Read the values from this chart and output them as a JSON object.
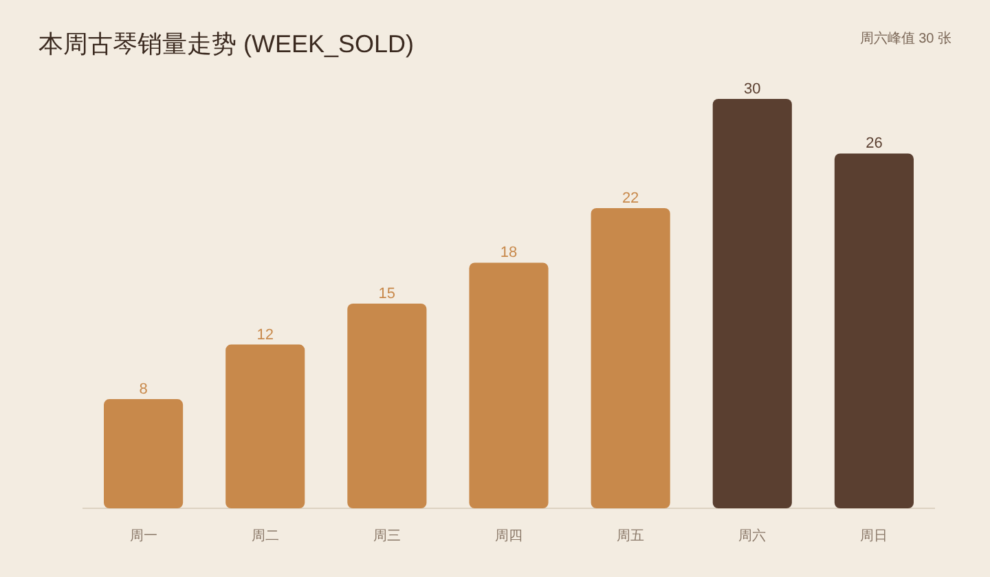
{
  "chart_data": {
    "type": "bar",
    "title": "本周古琴销量走势 (WEEK_SOLD)",
    "annotations": [
      "周六峰值 30 张"
    ],
    "categories": [
      "周一",
      "周二",
      "周三",
      "周四",
      "周五",
      "周六",
      "周日"
    ],
    "values": [
      8,
      12,
      15,
      18,
      22,
      30,
      26
    ],
    "colors": [
      "#c8894b",
      "#c8894b",
      "#c8894b",
      "#c8894b",
      "#c8894b",
      "#5a3f30",
      "#5a3f30"
    ],
    "ylim": [
      0,
      30
    ],
    "data_labels": true
  }
}
